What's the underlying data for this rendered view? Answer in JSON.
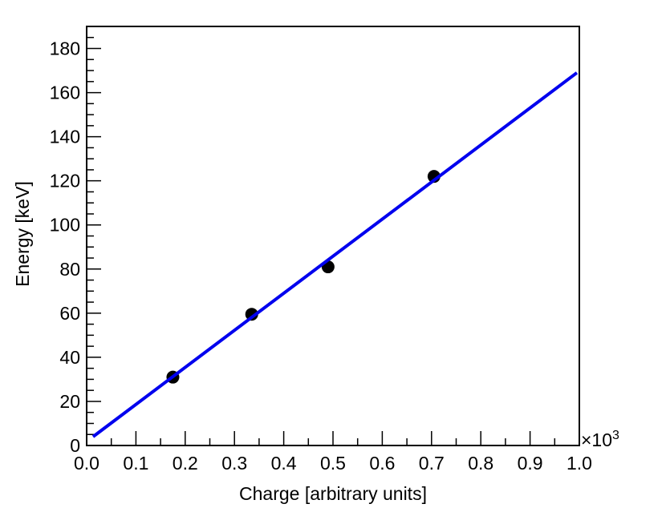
{
  "chart_data": {
    "type": "scatter",
    "x_label": "Charge [arbitrary units]",
    "y_label": "Energy [keV]",
    "x_multiplier": {
      "base": "×10",
      "power": "3"
    },
    "xlim": [
      0,
      1
    ],
    "ylim": [
      0,
      190
    ],
    "xticks": [
      {
        "value": 0,
        "label": "0.0"
      },
      0.1,
      0.2,
      0.3,
      0.4,
      0.5,
      0.6,
      0.7,
      0.8,
      0.9,
      {
        "value": 1,
        "label": "1.0"
      }
    ],
    "yticks": [
      0,
      20,
      40,
      60,
      80,
      100,
      120,
      140,
      160,
      180
    ],
    "series": [
      {
        "kind": "points",
        "color": "#000000",
        "x": [
          0.175,
          0.335,
          0.49,
          0.705
        ],
        "values": [
          31,
          59.5,
          81,
          122
        ]
      },
      {
        "kind": "line",
        "color": "#0000ee",
        "x": [
          0.013,
          0.995
        ],
        "values": [
          4,
          169
        ]
      }
    ]
  }
}
